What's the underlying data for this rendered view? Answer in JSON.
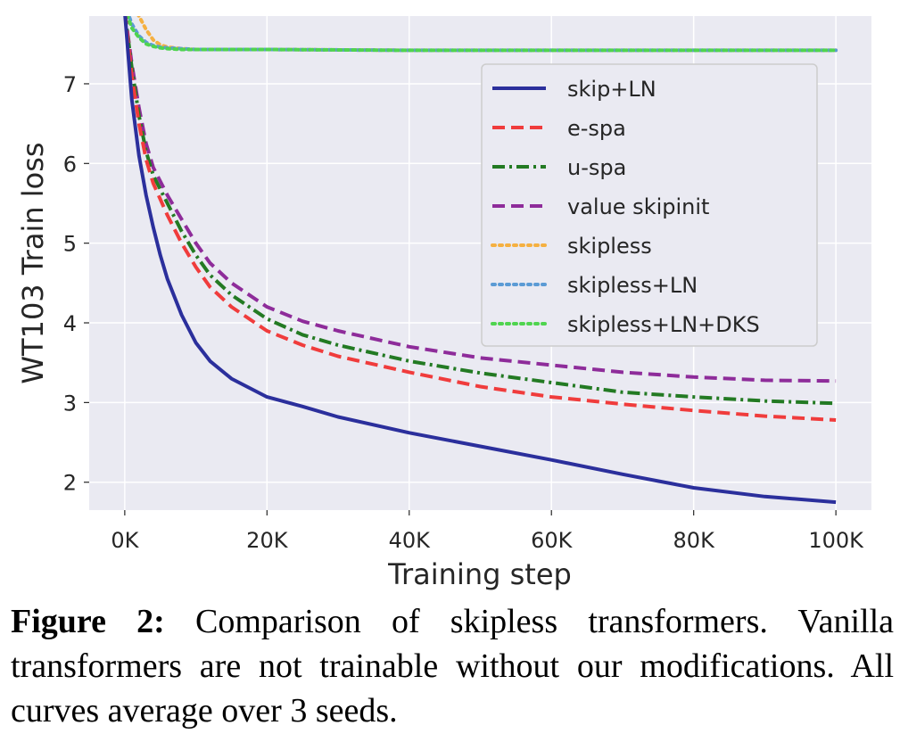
{
  "chart_data": {
    "type": "line",
    "xlabel": "Training step",
    "ylabel": "WT103 Train loss",
    "xlim": [
      -5000,
      105000
    ],
    "ylim": [
      1.65,
      7.85
    ],
    "xticks": [
      0,
      20000,
      40000,
      60000,
      80000,
      100000
    ],
    "xtick_labels": [
      "0K",
      "20K",
      "40K",
      "60K",
      "80K",
      "100K"
    ],
    "yticks": [
      2,
      3,
      4,
      5,
      6,
      7
    ],
    "ytick_labels": [
      "2",
      "3",
      "4",
      "5",
      "6",
      "7"
    ],
    "grid": true,
    "legend_position": "upper-right",
    "series": [
      {
        "name": "skip+LN",
        "color": "#2b2f9c",
        "style": "solid",
        "x": [
          0,
          1000,
          2000,
          3000,
          4000,
          5000,
          6000,
          8000,
          10000,
          12000,
          15000,
          20000,
          25000,
          30000,
          40000,
          50000,
          60000,
          70000,
          80000,
          90000,
          100000
        ],
        "y": [
          7.9,
          6.8,
          6.1,
          5.6,
          5.2,
          4.85,
          4.55,
          4.1,
          3.75,
          3.52,
          3.3,
          3.07,
          2.95,
          2.82,
          2.62,
          2.45,
          2.28,
          2.1,
          1.93,
          1.82,
          1.75
        ]
      },
      {
        "name": "e-spa",
        "color": "#f03c3c",
        "style": "dashed",
        "x": [
          0,
          1000,
          2000,
          3000,
          4000,
          6000,
          8000,
          10000,
          12000,
          15000,
          20000,
          25000,
          30000,
          40000,
          50000,
          60000,
          70000,
          80000,
          90000,
          100000
        ],
        "y": [
          7.9,
          7.1,
          6.5,
          6.05,
          5.75,
          5.35,
          5.0,
          4.7,
          4.45,
          4.2,
          3.9,
          3.72,
          3.58,
          3.38,
          3.2,
          3.07,
          2.98,
          2.9,
          2.83,
          2.78
        ]
      },
      {
        "name": "u-spa",
        "color": "#237a23",
        "style": "dashdot",
        "x": [
          0,
          1000,
          2000,
          3000,
          4000,
          6000,
          8000,
          10000,
          12000,
          15000,
          20000,
          25000,
          30000,
          40000,
          50000,
          60000,
          70000,
          80000,
          90000,
          100000
        ],
        "y": [
          7.9,
          7.2,
          6.6,
          6.15,
          5.85,
          5.5,
          5.15,
          4.85,
          4.6,
          4.35,
          4.05,
          3.85,
          3.72,
          3.52,
          3.37,
          3.25,
          3.13,
          3.07,
          3.02,
          2.99
        ]
      },
      {
        "name": "value skipinit",
        "color": "#8e2c9a",
        "style": "dashed",
        "x": [
          0,
          1000,
          2000,
          3000,
          4000,
          6000,
          8000,
          10000,
          12000,
          15000,
          20000,
          25000,
          30000,
          40000,
          50000,
          60000,
          70000,
          80000,
          90000,
          100000
        ],
        "y": [
          7.9,
          7.25,
          6.7,
          6.25,
          5.95,
          5.6,
          5.3,
          5.0,
          4.75,
          4.5,
          4.2,
          4.02,
          3.9,
          3.7,
          3.56,
          3.47,
          3.38,
          3.32,
          3.28,
          3.27
        ]
      },
      {
        "name": "skipless",
        "color": "#f5b041",
        "style": "dotted",
        "x": [
          0,
          2000,
          3000,
          4000,
          5000,
          6000,
          8000,
          10000,
          20000,
          40000,
          60000,
          80000,
          100000
        ],
        "y": [
          8.1,
          7.85,
          7.68,
          7.55,
          7.49,
          7.46,
          7.44,
          7.43,
          7.43,
          7.42,
          7.42,
          7.42,
          7.42
        ]
      },
      {
        "name": "skipless+LN",
        "color": "#5b9bd5",
        "style": "dotted",
        "x": [
          0,
          1000,
          2000,
          3000,
          4000,
          5000,
          6000,
          8000,
          10000,
          20000,
          40000,
          60000,
          80000,
          100000
        ],
        "y": [
          8.0,
          7.75,
          7.6,
          7.52,
          7.48,
          7.46,
          7.45,
          7.44,
          7.43,
          7.43,
          7.42,
          7.42,
          7.42,
          7.42
        ]
      },
      {
        "name": "skipless+LN+DKS",
        "color": "#4fd44f",
        "style": "dotted",
        "x": [
          0,
          1000,
          2000,
          3000,
          4000,
          5000,
          6000,
          8000,
          10000,
          20000,
          40000,
          60000,
          80000,
          100000
        ],
        "y": [
          7.95,
          7.7,
          7.58,
          7.5,
          7.47,
          7.45,
          7.44,
          7.43,
          7.43,
          7.43,
          7.42,
          7.42,
          7.42,
          7.42
        ]
      }
    ]
  },
  "caption": {
    "label": "Figure 2:",
    "text": "Comparison of skipless transformers. Vanilla transformers are not trainable without our modifications. All curves average over 3 seeds."
  }
}
